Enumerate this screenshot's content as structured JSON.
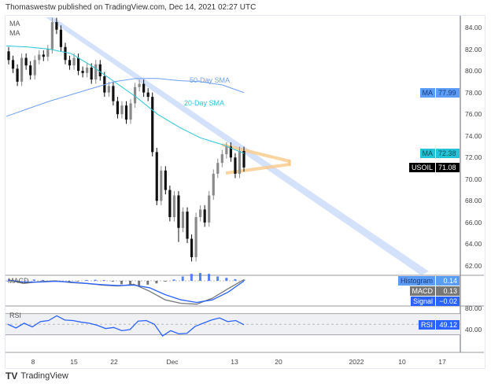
{
  "header": {
    "text": "Thomaswestw published on TradingView.com, Dec 14, 2021 02:27 UTC"
  },
  "legend": {
    "ma1": "MA",
    "ma2": "MA",
    "macd": "MACD",
    "rsi": "RSI"
  },
  "annotations": {
    "sma50": "50-Day SMA",
    "sma20": "20-Day SMA"
  },
  "colors": {
    "up": "#8a8a8a",
    "down": "#111111",
    "sma20": "#29c5d6",
    "sma50": "#6fa0f0",
    "trend_band": "#c5d7fa",
    "triangle": "#f9c989",
    "macd": "#777777",
    "signal": "#2962ff",
    "rsi": "#2962ff"
  },
  "price_tags": [
    {
      "label": "MA",
      "value": "77.99",
      "bg": "#5b9cf6",
      "fg": "#1a3d7a",
      "price": 77.99
    },
    {
      "label": "MA",
      "value": "72.38",
      "bg": "#22c3d6",
      "fg": "#0b4d55",
      "price": 72.38
    },
    {
      "label": "USOIL",
      "value": "71.08",
      "bg": "#000000",
      "fg": "#ffffff",
      "price": 71.08
    }
  ],
  "indicator_tags": [
    {
      "label": "Histogram",
      "value": "0.14",
      "bg": "#5b9cf6"
    },
    {
      "label": "MACD",
      "value": "0.13",
      "bg": "#777777"
    },
    {
      "label": "Signal",
      "value": "−0.02",
      "bg": "#2962ff"
    },
    {
      "label": "RSI",
      "value": "49.12",
      "bg": "#2962ff"
    }
  ],
  "footer": {
    "brand": "TradingView"
  },
  "chart_data": {
    "type": "candlestick",
    "symbol": "USOIL",
    "y_ticks": [
      "84.00",
      "82.00",
      "80.00",
      "78.00",
      "76.00",
      "74.00",
      "72.00",
      "70.00",
      "68.00",
      "66.00",
      "64.00",
      "62.00"
    ],
    "ylim": [
      61.5,
      85
    ],
    "x_ticks": [
      "8",
      "15",
      "22",
      "Dec",
      "13",
      "20",
      "2022",
      "10",
      "17"
    ],
    "candles": [
      [
        81.8,
        82.2,
        80.6,
        81.0
      ],
      [
        81.0,
        81.4,
        79.8,
        80.2
      ],
      [
        80.2,
        80.6,
        78.6,
        79.0
      ],
      [
        79.0,
        81.6,
        78.6,
        81.2
      ],
      [
        81.2,
        81.6,
        80.1,
        80.5
      ],
      [
        80.5,
        80.9,
        79.2,
        79.6
      ],
      [
        79.6,
        81.4,
        79.2,
        81.0
      ],
      [
        81.0,
        81.9,
        80.6,
        81.5
      ],
      [
        81.5,
        81.9,
        80.9,
        81.3
      ],
      [
        81.3,
        82.4,
        80.9,
        82.0
      ],
      [
        82.0,
        84.9,
        81.6,
        84.5
      ],
      [
        84.5,
        84.9,
        83.4,
        83.8
      ],
      [
        83.8,
        84.2,
        81.8,
        82.2
      ],
      [
        82.2,
        82.6,
        80.6,
        81.0
      ],
      [
        81.0,
        81.4,
        80.1,
        80.5
      ],
      [
        80.5,
        81.6,
        80.1,
        81.2
      ],
      [
        81.2,
        81.6,
        79.6,
        80.0
      ],
      [
        80.0,
        80.4,
        79.4,
        79.8
      ],
      [
        79.8,
        80.7,
        79.4,
        80.3
      ],
      [
        80.3,
        80.7,
        78.8,
        79.2
      ],
      [
        79.2,
        81.0,
        78.8,
        80.6
      ],
      [
        80.6,
        81.0,
        79.1,
        79.5
      ],
      [
        79.5,
        79.9,
        77.6,
        78.0
      ],
      [
        78.0,
        79.0,
        77.6,
        78.6
      ],
      [
        78.6,
        79.0,
        76.8,
        77.2
      ],
      [
        77.2,
        77.6,
        75.6,
        76.0
      ],
      [
        76.0,
        77.2,
        75.6,
        76.8
      ],
      [
        76.8,
        77.2,
        75.1,
        75.5
      ],
      [
        75.5,
        77.4,
        75.1,
        77.0
      ],
      [
        77.0,
        78.9,
        76.6,
        78.5
      ],
      [
        78.5,
        79.2,
        78.1,
        78.8
      ],
      [
        78.8,
        79.2,
        77.6,
        78.0
      ],
      [
        78.0,
        78.4,
        77.2,
        77.6
      ],
      [
        77.6,
        78.0,
        72.1,
        72.5
      ],
      [
        72.5,
        72.9,
        67.6,
        68.0
      ],
      [
        68.0,
        71.2,
        67.6,
        70.8
      ],
      [
        70.8,
        71.2,
        68.6,
        69.0
      ],
      [
        69.0,
        69.4,
        66.1,
        66.5
      ],
      [
        66.5,
        68.9,
        66.1,
        68.5
      ],
      [
        68.5,
        68.9,
        64.2,
        65.5
      ],
      [
        65.5,
        67.4,
        65.1,
        67.0
      ],
      [
        67.0,
        67.4,
        64.1,
        64.5
      ],
      [
        64.5,
        64.9,
        62.4,
        62.8
      ],
      [
        62.8,
        66.9,
        62.4,
        66.5
      ],
      [
        66.5,
        67.6,
        66.1,
        67.2
      ],
      [
        67.2,
        67.6,
        65.6,
        66.0
      ],
      [
        66.0,
        68.9,
        65.6,
        68.5
      ],
      [
        68.5,
        70.9,
        68.1,
        70.5
      ],
      [
        70.5,
        71.9,
        70.1,
        71.5
      ],
      [
        71.5,
        72.7,
        71.1,
        72.3
      ],
      [
        72.3,
        73.4,
        71.9,
        73.0
      ],
      [
        73.0,
        73.4,
        71.6,
        72.0
      ],
      [
        72.0,
        72.4,
        70.1,
        70.5
      ],
      [
        70.5,
        73.0,
        70.1,
        72.6
      ],
      [
        72.6,
        73.0,
        70.7,
        71.08
      ]
    ],
    "sma20": [
      82.3,
      82.2,
      82.0,
      81.6,
      80.4,
      79.0,
      77.6,
      76.0,
      74.8,
      73.8,
      73.2,
      72.38
    ],
    "sma50": [
      75.8,
      76.5,
      77.2,
      77.8,
      78.4,
      79.0,
      79.3,
      79.3,
      79.1,
      79.0,
      78.7,
      77.99
    ],
    "macd": {
      "macd": [
        0.1,
        -0.3,
        -0.1,
        0.0,
        -0.2,
        -0.3,
        -0.5,
        -0.6,
        -0.4,
        -1.2,
        -2.2,
        -2.6,
        -2.7,
        -2.0,
        -0.9,
        0.13
      ],
      "signal": [
        0.1,
        -0.15,
        -0.15,
        -0.05,
        -0.15,
        -0.3,
        -0.45,
        -0.55,
        -0.5,
        -0.8,
        -1.6,
        -2.2,
        -2.5,
        -2.2,
        -1.3,
        -0.02
      ],
      "histogram": [
        0.0,
        -0.1,
        0.05,
        0.15,
        0.1,
        -0.05,
        -0.1,
        -0.1,
        -0.05,
        0.1,
        0.12,
        0.08,
        -0.1,
        -0.4,
        -0.55,
        -0.55,
        -0.45,
        -0.3,
        -0.1,
        0.15,
        0.5,
        0.8,
        0.9,
        0.8,
        0.5,
        0.35,
        0.2,
        0.14
      ]
    },
    "rsi": {
      "ylim": [
        20,
        90
      ],
      "bands": [
        70,
        30
      ],
      "values": [
        50,
        43,
        52,
        45,
        55,
        57,
        66,
        58,
        57,
        54,
        52,
        48,
        42,
        44,
        38,
        40,
        56,
        57,
        50,
        28,
        38,
        32,
        33,
        46,
        52,
        58,
        62,
        55,
        57,
        49.12
      ]
    }
  }
}
